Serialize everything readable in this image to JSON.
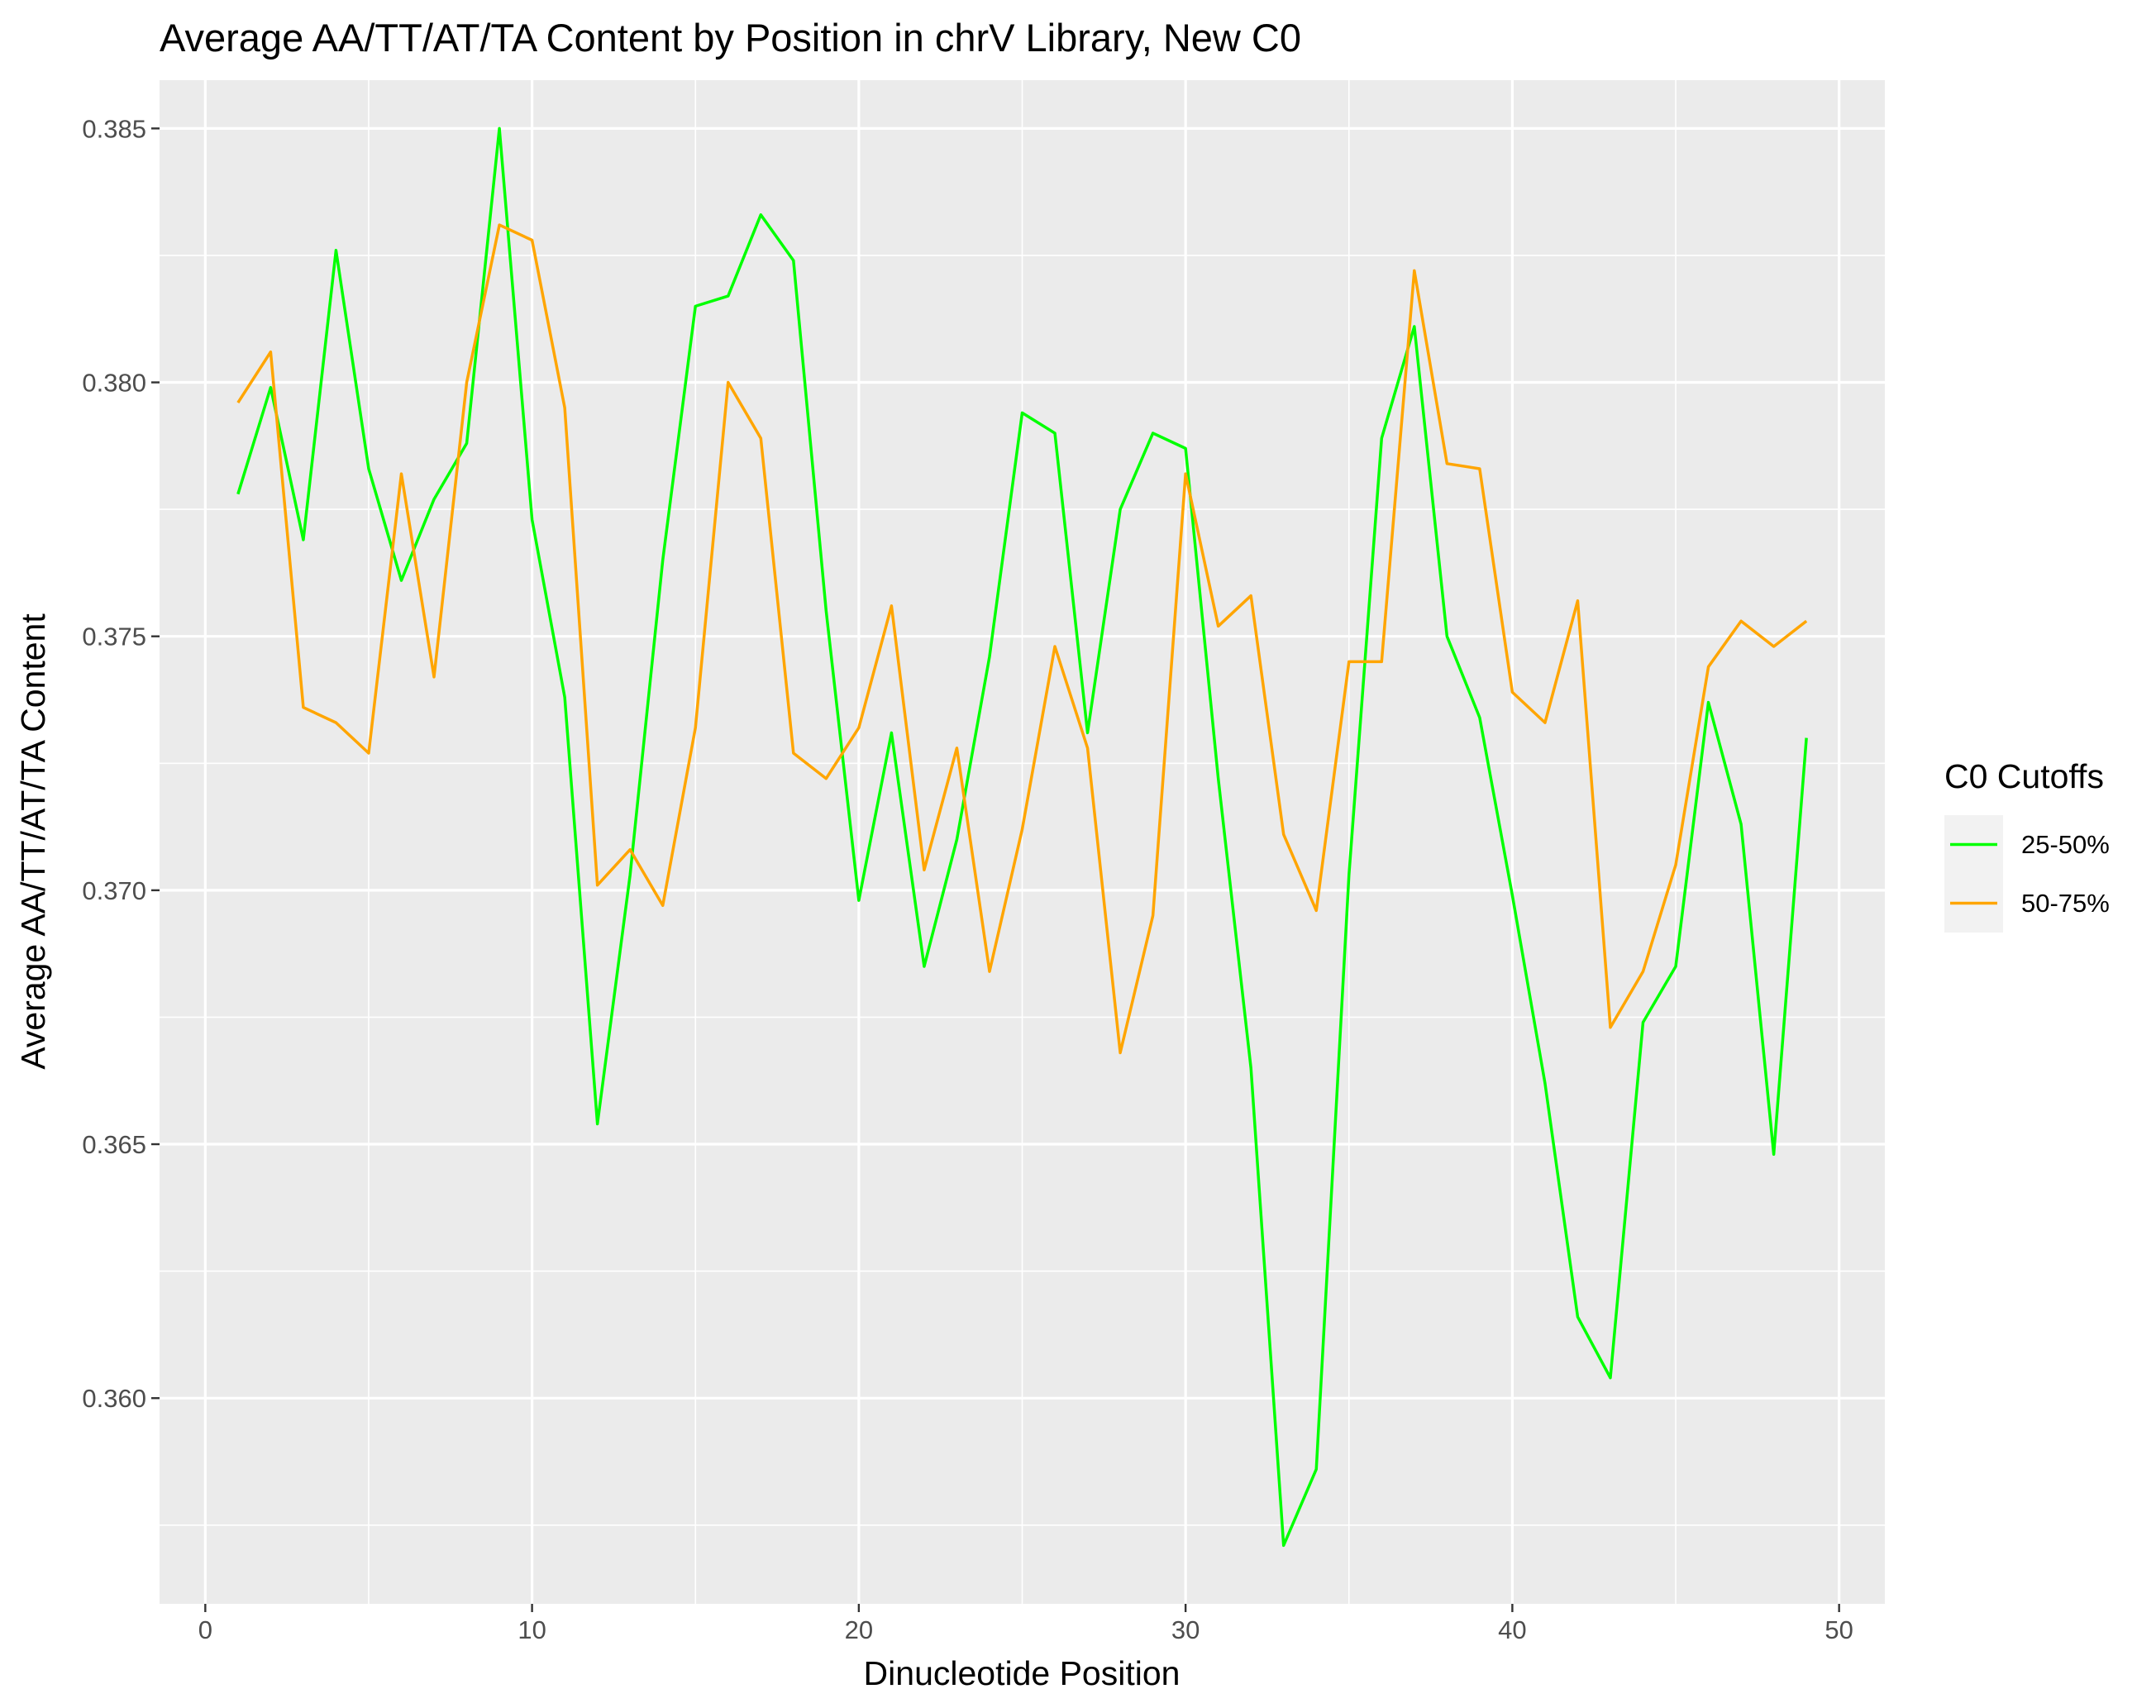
{
  "chart_data": {
    "type": "line",
    "title": "Average AA/TT/AT/TA Content by Position in chrV Library, New C0",
    "xlabel": "Dinucleotide Position",
    "ylabel": "Average AA/TT/AT/TA Content",
    "xlim": [
      -1.4,
      51.4
    ],
    "ylim": [
      0.35595,
      0.38595
    ],
    "x_ticks": [
      0,
      10,
      20,
      30,
      40,
      50
    ],
    "x_tick_labels": [
      "0",
      "10",
      "20",
      "30",
      "40",
      "50"
    ],
    "y_ticks": [
      0.36,
      0.365,
      0.37,
      0.375,
      0.38,
      0.385
    ],
    "y_tick_labels": [
      "0.360",
      "0.365",
      "0.370",
      "0.375",
      "0.380",
      "0.385"
    ],
    "grid": true,
    "legend": {
      "title": "C0 Cutoffs",
      "position": "right"
    },
    "x": [
      1,
      2,
      3,
      4,
      5,
      6,
      7,
      8,
      9,
      10,
      11,
      12,
      13,
      14,
      15,
      16,
      17,
      18,
      19,
      20,
      21,
      22,
      23,
      24,
      25,
      26,
      27,
      28,
      29,
      30,
      31,
      32,
      33,
      34,
      35,
      36,
      37,
      38,
      39,
      40,
      41,
      42,
      43,
      44,
      45,
      46,
      47,
      48,
      49
    ],
    "series": [
      {
        "name": "25-50%",
        "color": "#00ff00",
        "values": [
          0.3778,
          0.3799,
          0.3769,
          0.3826,
          0.3783,
          0.3761,
          0.3777,
          0.3788,
          0.385,
          0.3773,
          0.3738,
          0.3654,
          0.3703,
          0.3765,
          0.3815,
          0.3817,
          0.3833,
          0.3824,
          0.3755,
          0.3698,
          0.3731,
          0.3685,
          0.371,
          0.3746,
          0.3794,
          0.379,
          0.3731,
          0.3775,
          0.379,
          0.3787,
          0.3722,
          0.3665,
          0.3571,
          0.3586,
          0.3703,
          0.3789,
          0.3811,
          0.375,
          0.3734,
          0.3699,
          0.3662,
          0.3616,
          0.3604,
          0.3674,
          0.3685,
          0.3737,
          0.3713,
          0.3648,
          0.373
        ]
      },
      {
        "name": "50-75%",
        "color": "#ffa500",
        "values": [
          0.3796,
          0.3806,
          0.3736,
          0.3733,
          0.3727,
          0.3782,
          0.3742,
          0.38,
          0.3831,
          0.3828,
          0.3795,
          0.3701,
          0.3708,
          0.3697,
          0.3732,
          0.38,
          0.3789,
          0.3727,
          0.3722,
          0.3732,
          0.3756,
          0.3704,
          0.3728,
          0.3684,
          0.3712,
          0.3748,
          0.3728,
          0.3668,
          0.3695,
          0.3782,
          0.3752,
          0.3758,
          0.3711,
          0.3696,
          0.3745,
          0.3745,
          0.3822,
          0.3784,
          0.3783,
          0.3739,
          0.3733,
          0.3757,
          0.3673,
          0.3684,
          0.3705,
          0.3744,
          0.3753,
          0.3748,
          0.3753
        ]
      }
    ]
  }
}
